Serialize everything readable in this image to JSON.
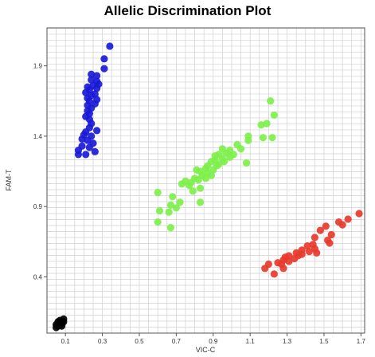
{
  "chart_data": {
    "type": "scatter",
    "title": "Allelic Discrimination Plot",
    "xlabel": "VIC-C",
    "ylabel": "FAM-T",
    "xlim": [
      0.0,
      1.72
    ],
    "ylim": [
      0.0,
      2.17
    ],
    "xticks": [
      "0.1",
      "0.3",
      "0.5",
      "0.7",
      "0.9",
      "1.1",
      "1.3",
      "1.5",
      "1.7"
    ],
    "yticks": [
      "0.4",
      "0.9",
      "1.4",
      "1.9"
    ],
    "grid": true,
    "legend": "none",
    "series": [
      {
        "color": "#1a1ad6",
        "points": [
          [
            0.34,
            2.04
          ],
          [
            0.31,
            1.95
          ],
          [
            0.31,
            1.88
          ],
          [
            0.24,
            1.84
          ],
          [
            0.27,
            1.83
          ],
          [
            0.24,
            1.8
          ],
          [
            0.27,
            1.79
          ],
          [
            0.28,
            1.77
          ],
          [
            0.25,
            1.76
          ],
          [
            0.22,
            1.75
          ],
          [
            0.27,
            1.74
          ],
          [
            0.23,
            1.73
          ],
          [
            0.21,
            1.71
          ],
          [
            0.26,
            1.7
          ],
          [
            0.24,
            1.69
          ],
          [
            0.22,
            1.67
          ],
          [
            0.27,
            1.66
          ],
          [
            0.23,
            1.65
          ],
          [
            0.26,
            1.63
          ],
          [
            0.22,
            1.62
          ],
          [
            0.24,
            1.6
          ],
          [
            0.22,
            1.58
          ],
          [
            0.23,
            1.56
          ],
          [
            0.21,
            1.54
          ],
          [
            0.23,
            1.52
          ],
          [
            0.24,
            1.49
          ],
          [
            0.23,
            1.46
          ],
          [
            0.27,
            1.44
          ],
          [
            0.21,
            1.43
          ],
          [
            0.2,
            1.41
          ],
          [
            0.24,
            1.4
          ],
          [
            0.19,
            1.38
          ],
          [
            0.22,
            1.37
          ],
          [
            0.25,
            1.35
          ],
          [
            0.19,
            1.33
          ],
          [
            0.23,
            1.32
          ],
          [
            0.17,
            1.3
          ],
          [
            0.26,
            1.29
          ],
          [
            0.17,
            1.27
          ],
          [
            0.21,
            1.27
          ]
        ]
      },
      {
        "color": "#7df04a",
        "points": [
          [
            1.21,
            1.65
          ],
          [
            1.23,
            1.55
          ],
          [
            1.19,
            1.49
          ],
          [
            1.16,
            1.48
          ],
          [
            1.22,
            1.39
          ],
          [
            1.17,
            1.39
          ],
          [
            1.09,
            1.4
          ],
          [
            1.09,
            1.37
          ],
          [
            1.03,
            1.34
          ],
          [
            1.05,
            1.31
          ],
          [
            0.99,
            1.3
          ],
          [
            0.95,
            1.31
          ],
          [
            0.97,
            1.28
          ],
          [
            0.93,
            1.27
          ],
          [
            0.91,
            1.26
          ],
          [
            1.01,
            1.27
          ],
          [
            0.99,
            1.25
          ],
          [
            0.95,
            1.24
          ],
          [
            0.91,
            1.23
          ],
          [
            0.96,
            1.22
          ],
          [
            0.89,
            1.22
          ],
          [
            1.08,
            1.21
          ],
          [
            0.93,
            1.2
          ],
          [
            0.87,
            1.19
          ],
          [
            0.92,
            1.19
          ],
          [
            0.86,
            1.17
          ],
          [
            0.9,
            1.16
          ],
          [
            0.81,
            1.16
          ],
          [
            0.83,
            1.15
          ],
          [
            0.87,
            1.14
          ],
          [
            0.84,
            1.12
          ],
          [
            0.89,
            1.12
          ],
          [
            0.86,
            1.1
          ],
          [
            0.8,
            1.1
          ],
          [
            0.82,
            1.09
          ],
          [
            0.75,
            1.08
          ],
          [
            0.78,
            1.07
          ],
          [
            0.73,
            1.06
          ],
          [
            0.77,
            1.05
          ],
          [
            0.83,
            1.03
          ],
          [
            0.79,
            1.01
          ],
          [
            0.6,
            1.0
          ],
          [
            0.68,
            0.97
          ],
          [
            0.72,
            0.93
          ],
          [
            0.83,
            0.93
          ],
          [
            0.67,
            0.91
          ],
          [
            0.7,
            0.89
          ],
          [
            0.61,
            0.87
          ],
          [
            0.66,
            0.86
          ],
          [
            0.6,
            0.79
          ],
          [
            0.67,
            0.75
          ]
        ]
      },
      {
        "color": "#e8392c",
        "points": [
          [
            1.69,
            0.85
          ],
          [
            1.63,
            0.81
          ],
          [
            1.58,
            0.79
          ],
          [
            1.6,
            0.77
          ],
          [
            1.51,
            0.76
          ],
          [
            1.48,
            0.73
          ],
          [
            1.54,
            0.7
          ],
          [
            1.45,
            0.68
          ],
          [
            1.52,
            0.66
          ],
          [
            1.53,
            0.64
          ],
          [
            1.44,
            0.63
          ],
          [
            1.41,
            0.62
          ],
          [
            1.45,
            0.6
          ],
          [
            1.38,
            0.59
          ],
          [
            1.42,
            0.58
          ],
          [
            1.35,
            0.57
          ],
          [
            1.46,
            0.57
          ],
          [
            1.38,
            0.56
          ],
          [
            1.36,
            0.55
          ],
          [
            1.31,
            0.55
          ],
          [
            1.29,
            0.54
          ],
          [
            1.34,
            0.53
          ],
          [
            1.28,
            0.52
          ],
          [
            1.31,
            0.51
          ],
          [
            1.25,
            0.5
          ],
          [
            1.27,
            0.49
          ],
          [
            1.2,
            0.49
          ],
          [
            1.18,
            0.46
          ],
          [
            1.28,
            0.46
          ],
          [
            1.23,
            0.42
          ]
        ]
      },
      {
        "color": "#000000",
        "points": [
          [
            0.07,
            0.09
          ],
          [
            0.09,
            0.1
          ],
          [
            0.06,
            0.08
          ],
          [
            0.08,
            0.07
          ],
          [
            0.05,
            0.06
          ],
          [
            0.08,
            0.05
          ],
          [
            0.06,
            0.05
          ],
          [
            0.09,
            0.08
          ],
          [
            0.05,
            0.04
          ],
          [
            0.07,
            0.06
          ]
        ]
      }
    ]
  }
}
